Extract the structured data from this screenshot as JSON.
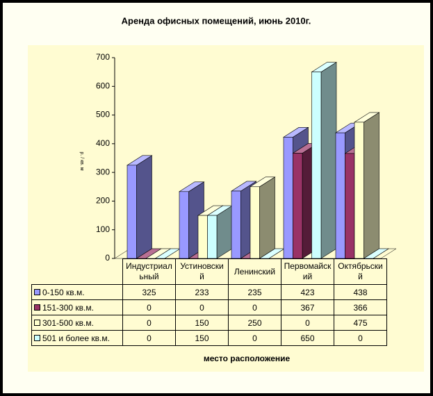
{
  "chart_data": {
    "type": "bar3d",
    "title": "Аренда офисных помещений, июнь 2010г.",
    "y_label": "р. / кв. м",
    "x_label": "место расположение",
    "categories": [
      "Индустриальный",
      "Устиновский",
      "Ленинский",
      "Первомайский",
      "Октябрьский"
    ],
    "series": [
      {
        "name": "0-150 кв.м.",
        "color": "#9999ff",
        "values": [
          325,
          233,
          235,
          423,
          438
        ]
      },
      {
        "name": "151-300 кв.м.",
        "color": "#993366",
        "values": [
          0,
          0,
          0,
          367,
          366
        ]
      },
      {
        "name": "301-500 кв.м.",
        "color": "#ffffcc",
        "values": [
          0,
          150,
          250,
          0,
          475
        ]
      },
      {
        "name": "501 и более кв.м.",
        "color": "#ccffff",
        "values": [
          0,
          150,
          0,
          650,
          0
        ]
      }
    ],
    "ylim": [
      0,
      700
    ],
    "yticks": [
      0,
      100,
      200,
      300,
      400,
      500,
      600,
      700
    ]
  }
}
